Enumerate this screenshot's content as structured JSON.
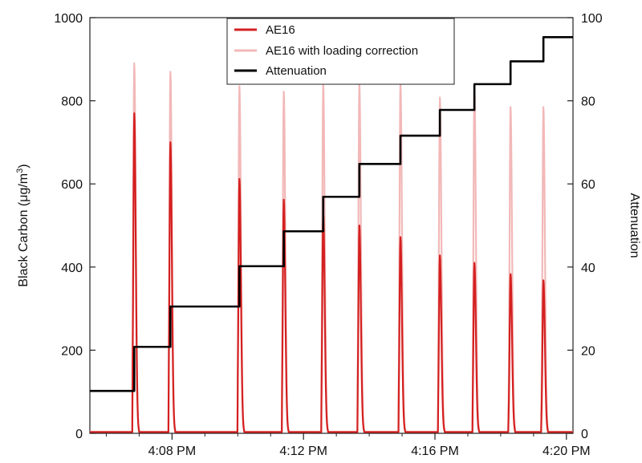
{
  "chart_data": {
    "type": "line",
    "y_left": {
      "title": "Black Carbon (μg/m³)",
      "title_prefix": "Black Carbon (",
      "title_unit_base": "μg/m",
      "title_unit_exp": "3",
      "title_suffix": ")",
      "range": [
        0,
        1000
      ],
      "ticks": [
        0,
        200,
        400,
        600,
        800,
        1000
      ]
    },
    "y_right": {
      "title": "Attenuation",
      "range": [
        0,
        100
      ],
      "ticks": [
        0,
        20,
        40,
        60,
        80,
        100
      ]
    },
    "x": {
      "range_minutes": [
        5.5,
        20.2
      ],
      "ticks": [
        {
          "minutes": 8,
          "label": "4:08 PM"
        },
        {
          "minutes": 12,
          "label": "4:12 PM"
        },
        {
          "minutes": 16,
          "label": "4:16 PM"
        },
        {
          "minutes": 20,
          "label": "4:20 PM"
        }
      ]
    },
    "grid": false,
    "legend": {
      "placement": "top-center",
      "entries": [
        "AE16",
        "AE16 with loading correction",
        "Attenuation"
      ]
    },
    "peak_minutes": [
      6.85,
      7.95,
      10.05,
      11.4,
      12.6,
      13.7,
      14.95,
      16.15,
      17.2,
      18.3,
      19.3
    ],
    "series": [
      {
        "name": "AE16",
        "axis": "left",
        "color": "#d42020",
        "peak_values": [
          770,
          700,
          612,
          562,
          530,
          500,
          472,
          428,
          410,
          383,
          368
        ]
      },
      {
        "name": "AE16 with loading correction",
        "axis": "left",
        "color": "#f2b8b8",
        "peak_values": [
          890,
          870,
          835,
          822,
          840,
          843,
          845,
          808,
          835,
          785,
          785
        ]
      },
      {
        "name": "Attenuation",
        "axis": "right",
        "color": "#000000",
        "steps": [
          {
            "start": 5.5,
            "end": 6.85,
            "value": 10.2
          },
          {
            "start": 6.85,
            "end": 7.95,
            "value": 20.8
          },
          {
            "start": 7.95,
            "end": 10.05,
            "value": 30.5
          },
          {
            "start": 10.05,
            "end": 11.4,
            "value": 40.2
          },
          {
            "start": 11.4,
            "end": 12.6,
            "value": 48.6
          },
          {
            "start": 12.6,
            "end": 13.7,
            "value": 56.9
          },
          {
            "start": 13.7,
            "end": 14.95,
            "value": 64.8
          },
          {
            "start": 14.95,
            "end": 16.15,
            "value": 71.6
          },
          {
            "start": 16.15,
            "end": 17.2,
            "value": 77.8
          },
          {
            "start": 17.2,
            "end": 18.3,
            "value": 84.0
          },
          {
            "start": 18.3,
            "end": 19.3,
            "value": 89.5
          },
          {
            "start": 19.3,
            "end": 20.2,
            "value": 95.3
          }
        ]
      }
    ]
  }
}
